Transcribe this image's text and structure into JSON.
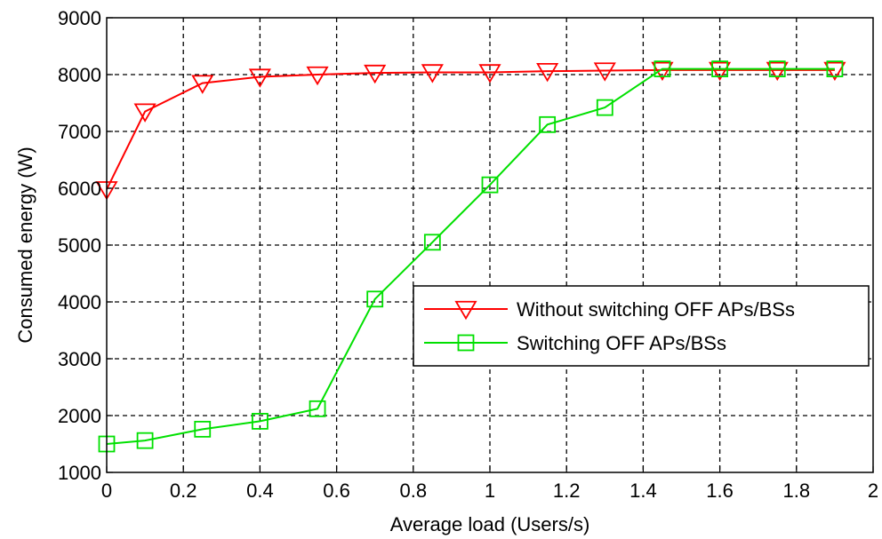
{
  "chart_data": {
    "type": "line",
    "title": "",
    "xlabel": "Average load (Users/s)",
    "ylabel": "Consumed energy (W)",
    "xlim": [
      0,
      2
    ],
    "ylim": [
      1000,
      9000
    ],
    "xticks": [
      0,
      0.2,
      0.4,
      0.6,
      0.8,
      1,
      1.2,
      1.4,
      1.6,
      1.8,
      2
    ],
    "yticks": [
      1000,
      2000,
      3000,
      4000,
      5000,
      6000,
      7000,
      8000,
      9000
    ],
    "grid": true,
    "legend_position": "center-right",
    "series": [
      {
        "name": "Without switching OFF APs/BSs",
        "color": "#ff0000",
        "marker": "triangle-down",
        "x": [
          0,
          0.1,
          0.25,
          0.4,
          0.55,
          0.7,
          0.85,
          1,
          1.15,
          1.3,
          1.45,
          1.6,
          1.75,
          1.9
        ],
        "y": [
          5980,
          7350,
          7850,
          7960,
          8000,
          8030,
          8040,
          8040,
          8060,
          8070,
          8080,
          8080,
          8080,
          8080
        ]
      },
      {
        "name": "Switching OFF APs/BSs",
        "color": "#00e000",
        "marker": "square",
        "x": [
          0,
          0.1,
          0.25,
          0.4,
          0.55,
          0.7,
          0.85,
          1,
          1.15,
          1.3,
          1.45,
          1.6,
          1.75,
          1.9
        ],
        "y": [
          1500,
          1560,
          1760,
          1900,
          2120,
          4050,
          5050,
          6060,
          7120,
          7420,
          8100,
          8100,
          8100,
          8100
        ]
      }
    ]
  }
}
